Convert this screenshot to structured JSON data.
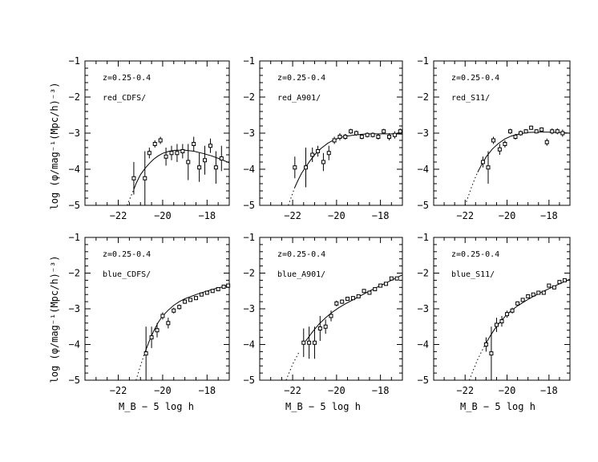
{
  "figure": {
    "ylabel": "log (φ/mag⁻¹(Mpc/h)⁻³)",
    "xlabel": "M_B − 5 log h"
  },
  "chart_data": [
    {
      "type": "scatter",
      "redshift_label": "z=0.25-0.4",
      "sample_label": "red_CDFS/",
      "xlim": [
        -23.5,
        -17
      ],
      "ylim": [
        -5,
        -1
      ],
      "xticks": [
        -22,
        -20,
        -18
      ],
      "yticks": [
        -5,
        -4,
        -3,
        -2,
        -1
      ],
      "points": [
        {
          "x": -21.3,
          "y": -4.25,
          "err": 0.45
        },
        {
          "x": -20.8,
          "y": -4.25,
          "err": 0.75
        },
        {
          "x": -20.6,
          "y": -3.55,
          "err": 0.15
        },
        {
          "x": -20.35,
          "y": -3.3,
          "err": 0.1
        },
        {
          "x": -20.1,
          "y": -3.2,
          "err": 0.1
        },
        {
          "x": -19.85,
          "y": -3.65,
          "err": 0.25
        },
        {
          "x": -19.6,
          "y": -3.55,
          "err": 0.2
        },
        {
          "x": -19.35,
          "y": -3.55,
          "err": 0.25
        },
        {
          "x": -19.1,
          "y": -3.5,
          "err": 0.2
        },
        {
          "x": -18.85,
          "y": -3.8,
          "err": 0.5
        },
        {
          "x": -18.6,
          "y": -3.3,
          "err": 0.2
        },
        {
          "x": -18.35,
          "y": -3.95,
          "err": 0.4
        },
        {
          "x": -18.1,
          "y": -3.75,
          "err": 0.4
        },
        {
          "x": -17.85,
          "y": -3.35,
          "err": 0.2
        },
        {
          "x": -17.6,
          "y": -3.95,
          "err": 0.45
        },
        {
          "x": -17.35,
          "y": -3.7,
          "err": 0.35
        }
      ],
      "fit_curve": {
        "x": [
          -21.6,
          -21.5,
          -21.4,
          -21.3,
          -21.2,
          -21.1,
          -21.0,
          -20.8,
          -20.6,
          -20.4,
          -20.2,
          -20.0,
          -19.7,
          -19.4,
          -19.0,
          -18.6,
          -18.2,
          -17.8,
          -17.4,
          -17.0
        ],
        "y": [
          -5.0,
          -4.85,
          -4.7,
          -4.56,
          -4.4,
          -4.27,
          -4.15,
          -3.98,
          -3.84,
          -3.72,
          -3.63,
          -3.56,
          -3.5,
          -3.47,
          -3.47,
          -3.5,
          -3.56,
          -3.63,
          -3.72,
          -3.82
        ]
      },
      "dotted_until_x": -21.3
    },
    {
      "type": "scatter",
      "redshift_label": "z=0.25-0.4",
      "sample_label": "red_A901/",
      "xlim": [
        -23.5,
        -17
      ],
      "ylim": [
        -5,
        -1
      ],
      "xticks": [
        -22,
        -20,
        -18
      ],
      "yticks": [
        -5,
        -4,
        -3,
        -2,
        -1
      ],
      "points": [
        {
          "x": -21.9,
          "y": -3.95,
          "err": 0.3
        },
        {
          "x": -21.4,
          "y": -3.95,
          "err": 0.55
        },
        {
          "x": -21.1,
          "y": -3.6,
          "err": 0.2
        },
        {
          "x": -20.85,
          "y": -3.5,
          "err": 0.15
        },
        {
          "x": -20.6,
          "y": -3.8,
          "err": 0.25
        },
        {
          "x": -20.35,
          "y": -3.55,
          "err": 0.2
        },
        {
          "x": -20.1,
          "y": -3.2,
          "err": 0.1
        },
        {
          "x": -19.85,
          "y": -3.1,
          "err": 0.1
        },
        {
          "x": -19.6,
          "y": -3.1,
          "err": 0.08
        },
        {
          "x": -19.35,
          "y": -2.95,
          "err": 0.07
        },
        {
          "x": -19.1,
          "y": -3.0,
          "err": 0.07
        },
        {
          "x": -18.85,
          "y": -3.1,
          "err": 0.07
        },
        {
          "x": -18.6,
          "y": -3.05,
          "err": 0.07
        },
        {
          "x": -18.35,
          "y": -3.05,
          "err": 0.07
        },
        {
          "x": -18.1,
          "y": -3.1,
          "err": 0.08
        },
        {
          "x": -17.85,
          "y": -2.95,
          "err": 0.07
        },
        {
          "x": -17.6,
          "y": -3.1,
          "err": 0.1
        },
        {
          "x": -17.35,
          "y": -3.05,
          "err": 0.1
        },
        {
          "x": -17.1,
          "y": -2.95,
          "err": 0.08
        }
      ],
      "fit_curve": {
        "x": [
          -22.2,
          -22.05,
          -21.9,
          -21.75,
          -21.6,
          -21.4,
          -21.2,
          -21.0,
          -20.7,
          -20.4,
          -20.1,
          -19.7,
          -19.3,
          -18.8,
          -18.3,
          -17.8,
          -17.3,
          -17.0
        ],
        "y": [
          -5.0,
          -4.75,
          -4.5,
          -4.3,
          -4.12,
          -3.93,
          -3.76,
          -3.6,
          -3.42,
          -3.28,
          -3.18,
          -3.1,
          -3.06,
          -3.03,
          -3.02,
          -3.02,
          -3.02,
          -3.03
        ]
      },
      "dotted_until_x": -21.9
    },
    {
      "type": "scatter",
      "redshift_label": "z=0.25-0.4",
      "sample_label": "red_S11/",
      "xlim": [
        -23.5,
        -17
      ],
      "ylim": [
        -5,
        -1
      ],
      "xticks": [
        -22,
        -20,
        -18
      ],
      "yticks": [
        -5,
        -4,
        -3,
        -2,
        -1
      ],
      "points": [
        {
          "x": -21.15,
          "y": -3.8,
          "err": 0.15
        },
        {
          "x": -20.9,
          "y": -3.95,
          "err": 0.45
        },
        {
          "x": -20.65,
          "y": -3.2,
          "err": 0.1
        },
        {
          "x": -20.35,
          "y": -3.45,
          "err": 0.15
        },
        {
          "x": -20.1,
          "y": -3.3,
          "err": 0.1
        },
        {
          "x": -19.85,
          "y": -2.95,
          "err": 0.07
        },
        {
          "x": -19.6,
          "y": -3.1,
          "err": 0.08
        },
        {
          "x": -19.35,
          "y": -3.0,
          "err": 0.07
        },
        {
          "x": -19.1,
          "y": -2.95,
          "err": 0.06
        },
        {
          "x": -18.85,
          "y": -2.85,
          "err": 0.06
        },
        {
          "x": -18.6,
          "y": -2.95,
          "err": 0.06
        },
        {
          "x": -18.35,
          "y": -2.9,
          "err": 0.06
        },
        {
          "x": -18.1,
          "y": -3.25,
          "err": 0.1
        },
        {
          "x": -17.85,
          "y": -2.95,
          "err": 0.08
        },
        {
          "x": -17.6,
          "y": -2.95,
          "err": 0.08
        },
        {
          "x": -17.35,
          "y": -3.0,
          "err": 0.1
        }
      ],
      "fit_curve": {
        "x": [
          -22.0,
          -21.85,
          -21.7,
          -21.55,
          -21.4,
          -21.2,
          -21.0,
          -20.7,
          -20.4,
          -20.1,
          -19.8,
          -19.4,
          -19.0,
          -18.5,
          -18.0,
          -17.5,
          -17.0
        ],
        "y": [
          -5.0,
          -4.75,
          -4.5,
          -4.28,
          -4.08,
          -3.86,
          -3.66,
          -3.44,
          -3.28,
          -3.16,
          -3.08,
          -3.02,
          -2.98,
          -2.97,
          -2.97,
          -2.98,
          -3.0
        ]
      },
      "dotted_until_x": -21.4
    },
    {
      "type": "scatter",
      "redshift_label": "z=0.25-0.4",
      "sample_label": "blue_CDFS/",
      "xlim": [
        -23.5,
        -17
      ],
      "ylim": [
        -5,
        -1
      ],
      "xticks": [
        -22,
        -20,
        -18
      ],
      "yticks": [
        -5,
        -4,
        -3,
        -2,
        -1
      ],
      "points": [
        {
          "x": -20.75,
          "y": -4.25,
          "err": 0.75
        },
        {
          "x": -20.5,
          "y": -3.8,
          "err": 0.3
        },
        {
          "x": -20.25,
          "y": -3.6,
          "err": 0.2
        },
        {
          "x": -20.0,
          "y": -3.2,
          "err": 0.1
        },
        {
          "x": -19.75,
          "y": -3.4,
          "err": 0.15
        },
        {
          "x": -19.5,
          "y": -3.05,
          "err": 0.08
        },
        {
          "x": -19.25,
          "y": -2.95,
          "err": 0.07
        },
        {
          "x": -19.0,
          "y": -2.8,
          "err": 0.06
        },
        {
          "x": -18.75,
          "y": -2.75,
          "err": 0.05
        },
        {
          "x": -18.5,
          "y": -2.7,
          "err": 0.05
        },
        {
          "x": -18.25,
          "y": -2.6,
          "err": 0.05
        },
        {
          "x": -18.0,
          "y": -2.55,
          "err": 0.05
        },
        {
          "x": -17.75,
          "y": -2.5,
          "err": 0.05
        },
        {
          "x": -17.5,
          "y": -2.45,
          "err": 0.05
        },
        {
          "x": -17.25,
          "y": -2.38,
          "err": 0.05
        },
        {
          "x": -17.05,
          "y": -2.35,
          "err": 0.05
        }
      ],
      "fit_curve": {
        "x": [
          -21.2,
          -21.0,
          -20.8,
          -20.6,
          -20.4,
          -20.2,
          -20.0,
          -19.75,
          -19.5,
          -19.25,
          -19.0,
          -18.7,
          -18.4,
          -18.0,
          -17.6,
          -17.2,
          -17.0
        ],
        "y": [
          -5.0,
          -4.6,
          -4.22,
          -3.9,
          -3.62,
          -3.38,
          -3.2,
          -3.04,
          -2.9,
          -2.8,
          -2.72,
          -2.65,
          -2.58,
          -2.5,
          -2.43,
          -2.37,
          -2.34
        ]
      },
      "dotted_until_x": -20.8
    },
    {
      "type": "scatter",
      "redshift_label": "z=0.25-0.4",
      "sample_label": "blue_A901/",
      "xlim": [
        -23.5,
        -17
      ],
      "ylim": [
        -5,
        -1
      ],
      "xticks": [
        -22,
        -20,
        -18
      ],
      "yticks": [
        -5,
        -4,
        -3,
        -2,
        -1
      ],
      "points": [
        {
          "x": -21.5,
          "y": -3.95,
          "err": 0.4
        },
        {
          "x": -21.25,
          "y": -3.95,
          "err": 0.45
        },
        {
          "x": -21.0,
          "y": -3.95,
          "err": 0.45
        },
        {
          "x": -20.75,
          "y": -3.55,
          "err": 0.35
        },
        {
          "x": -20.5,
          "y": -3.5,
          "err": 0.2
        },
        {
          "x": -20.25,
          "y": -3.2,
          "err": 0.15
        },
        {
          "x": -20.0,
          "y": -2.85,
          "err": 0.08
        },
        {
          "x": -19.75,
          "y": -2.8,
          "err": 0.06
        },
        {
          "x": -19.5,
          "y": -2.72,
          "err": 0.05
        },
        {
          "x": -19.25,
          "y": -2.7,
          "err": 0.05
        },
        {
          "x": -19.0,
          "y": -2.65,
          "err": 0.05
        },
        {
          "x": -18.75,
          "y": -2.5,
          "err": 0.04
        },
        {
          "x": -18.5,
          "y": -2.55,
          "err": 0.04
        },
        {
          "x": -18.25,
          "y": -2.45,
          "err": 0.04
        },
        {
          "x": -18.0,
          "y": -2.35,
          "err": 0.04
        },
        {
          "x": -17.75,
          "y": -2.3,
          "err": 0.04
        },
        {
          "x": -17.5,
          "y": -2.15,
          "err": 0.04
        },
        {
          "x": -17.25,
          "y": -2.15,
          "err": 0.04
        }
      ],
      "fit_curve": {
        "x": [
          -22.3,
          -22.0,
          -21.7,
          -21.4,
          -21.1,
          -20.8,
          -20.5,
          -20.2,
          -19.9,
          -19.6,
          -19.2,
          -18.8,
          -18.4,
          -18.0,
          -17.5,
          -17.0
        ],
        "y": [
          -5.0,
          -4.55,
          -4.2,
          -3.9,
          -3.65,
          -3.43,
          -3.25,
          -3.1,
          -2.97,
          -2.86,
          -2.73,
          -2.6,
          -2.47,
          -2.35,
          -2.2,
          -2.05
        ]
      },
      "dotted_until_x": -21.5
    },
    {
      "type": "scatter",
      "redshift_label": "z=0.25-0.4",
      "sample_label": "blue_S11/",
      "xlim": [
        -23.5,
        -17
      ],
      "ylim": [
        -5,
        -1
      ],
      "xticks": [
        -22,
        -20,
        -18
      ],
      "yticks": [
        -5,
        -4,
        -3,
        -2,
        -1
      ],
      "points": [
        {
          "x": -21.0,
          "y": -4.0,
          "err": 0.2
        },
        {
          "x": -20.75,
          "y": -4.25,
          "err": 0.75
        },
        {
          "x": -20.5,
          "y": -3.45,
          "err": 0.2
        },
        {
          "x": -20.25,
          "y": -3.35,
          "err": 0.15
        },
        {
          "x": -20.0,
          "y": -3.15,
          "err": 0.1
        },
        {
          "x": -19.75,
          "y": -3.05,
          "err": 0.08
        },
        {
          "x": -19.5,
          "y": -2.85,
          "err": 0.06
        },
        {
          "x": -19.25,
          "y": -2.75,
          "err": 0.05
        },
        {
          "x": -19.0,
          "y": -2.65,
          "err": 0.05
        },
        {
          "x": -18.75,
          "y": -2.6,
          "err": 0.04
        },
        {
          "x": -18.5,
          "y": -2.55,
          "err": 0.04
        },
        {
          "x": -18.25,
          "y": -2.55,
          "err": 0.04
        },
        {
          "x": -18.0,
          "y": -2.35,
          "err": 0.04
        },
        {
          "x": -17.75,
          "y": -2.4,
          "err": 0.04
        },
        {
          "x": -17.5,
          "y": -2.25,
          "err": 0.04
        },
        {
          "x": -17.25,
          "y": -2.2,
          "err": 0.04
        }
      ],
      "fit_curve": {
        "x": [
          -21.8,
          -21.6,
          -21.4,
          -21.2,
          -21.0,
          -20.8,
          -20.6,
          -20.4,
          -20.1,
          -19.8,
          -19.5,
          -19.1,
          -18.7,
          -18.3,
          -17.9,
          -17.5,
          -17.0
        ],
        "y": [
          -5.0,
          -4.7,
          -4.42,
          -4.18,
          -3.96,
          -3.76,
          -3.58,
          -3.42,
          -3.22,
          -3.05,
          -2.92,
          -2.77,
          -2.64,
          -2.52,
          -2.41,
          -2.3,
          -2.17
        ]
      },
      "dotted_until_x": -21.0
    }
  ]
}
